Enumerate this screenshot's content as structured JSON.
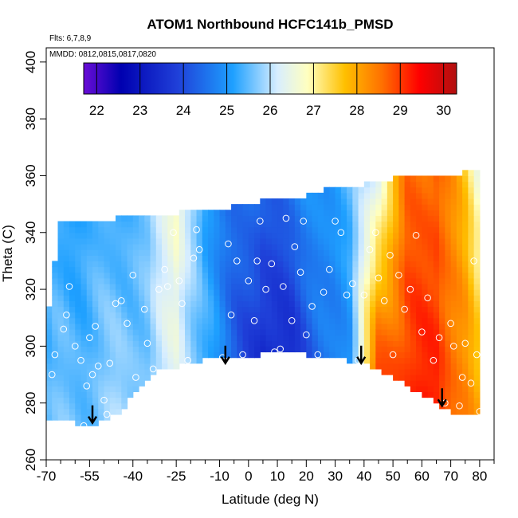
{
  "chart_data": {
    "type": "heatmap",
    "title": "ATOM1 Northbound HCFC141b_PMSD",
    "annotations": [
      "Flts: 6,7,8,9",
      "MMDD: 0812,0815,0817,0820"
    ],
    "xlabel": "Latitude (deg N)",
    "ylabel": "Theta (C)",
    "xlim": [
      -70,
      85
    ],
    "ylim": [
      260,
      405
    ],
    "x_ticks_major": [
      -70,
      -55,
      -40,
      -25,
      -10,
      0,
      10,
      20,
      30,
      40,
      50,
      60,
      70,
      80
    ],
    "x_ticks_minor": [
      -65,
      -60,
      -50,
      -45,
      -35,
      -30,
      -20,
      -15,
      -5,
      5,
      15,
      25,
      35,
      45,
      55,
      65,
      75,
      85
    ],
    "y_ticks": [
      260,
      280,
      300,
      320,
      340,
      360,
      380,
      400
    ],
    "colorbar": {
      "min": 21.7,
      "max": 30.3,
      "ticks": [
        22,
        23,
        24,
        25,
        26,
        27,
        28,
        29,
        30
      ]
    },
    "colors": {
      "scale": [
        "#6a0dd6",
        "#0000b0",
        "#1f3fd8",
        "#1ea0ff",
        "#c8e8ff",
        "#ffffc0",
        "#ffc000",
        "#ff7000",
        "#ff0000",
        "#b01010"
      ]
    },
    "field_description": {
      "anchors_lat": [
        -58,
        -45,
        -35,
        -25,
        -15,
        -5,
        5,
        15,
        25,
        35,
        45,
        55,
        65,
        75,
        80
      ],
      "anchor_values_low": [
        25.5,
        25.8,
        25.6,
        26.3,
        25.3,
        24.3,
        23.4,
        23.6,
        24.4,
        25.0,
        28.9,
        29.0,
        29.2,
        28.4,
        27.8
      ],
      "anchor_values_high": [
        25.2,
        25.3,
        25.5,
        26.8,
        25.0,
        24.5,
        24.2,
        24.5,
        25.0,
        25.3,
        26.5,
        28.5,
        28.8,
        27.5,
        26.5
      ]
    },
    "sample_points": [
      [
        -68,
        290
      ],
      [
        -67,
        297
      ],
      [
        -64,
        306
      ],
      [
        -63,
        311
      ],
      [
        -62,
        321
      ],
      [
        -60,
        300
      ],
      [
        -58,
        295
      ],
      [
        -57,
        272
      ],
      [
        -56,
        286
      ],
      [
        -55,
        303
      ],
      [
        -54,
        290
      ],
      [
        -53,
        307
      ],
      [
        -52,
        293
      ],
      [
        -50,
        281
      ],
      [
        -49,
        276
      ],
      [
        -48,
        294
      ],
      [
        -46,
        315
      ],
      [
        -44,
        316
      ],
      [
        -42,
        308
      ],
      [
        -40,
        325
      ],
      [
        -39,
        289
      ],
      [
        -36,
        313
      ],
      [
        -35,
        301
      ],
      [
        -33,
        292
      ],
      [
        -31,
        320
      ],
      [
        -29,
        327
      ],
      [
        -28,
        321
      ],
      [
        -26,
        340
      ],
      [
        -24,
        323
      ],
      [
        -23,
        315
      ],
      [
        -21,
        295
      ],
      [
        -19,
        331
      ],
      [
        -18,
        341
      ],
      [
        -17,
        334
      ],
      [
        -9,
        296
      ],
      [
        -7,
        336
      ],
      [
        -6,
        311
      ],
      [
        -4,
        330
      ],
      [
        -2,
        297
      ],
      [
        0,
        323
      ],
      [
        2,
        309
      ],
      [
        3,
        330
      ],
      [
        4,
        344
      ],
      [
        6,
        320
      ],
      [
        8,
        329
      ],
      [
        9,
        298
      ],
      [
        11,
        299
      ],
      [
        12,
        321
      ],
      [
        13,
        345
      ],
      [
        15,
        309
      ],
      [
        16,
        335
      ],
      [
        18,
        326
      ],
      [
        19,
        344
      ],
      [
        20,
        304
      ],
      [
        22,
        314
      ],
      [
        24,
        297
      ],
      [
        26,
        319
      ],
      [
        28,
        327
      ],
      [
        30,
        344
      ],
      [
        32,
        340
      ],
      [
        34,
        318
      ],
      [
        36,
        322
      ],
      [
        38,
        295
      ],
      [
        40,
        318
      ],
      [
        42,
        334
      ],
      [
        44,
        340
      ],
      [
        45,
        324
      ],
      [
        47,
        316
      ],
      [
        49,
        332
      ],
      [
        50,
        297
      ],
      [
        52,
        325
      ],
      [
        54,
        313
      ],
      [
        56,
        320
      ],
      [
        58,
        339
      ],
      [
        60,
        305
      ],
      [
        62,
        317
      ],
      [
        64,
        295
      ],
      [
        66,
        303
      ],
      [
        68,
        280
      ],
      [
        70,
        308
      ],
      [
        71,
        300
      ],
      [
        73,
        279
      ],
      [
        74,
        289
      ],
      [
        75,
        301
      ],
      [
        77,
        287
      ],
      [
        78,
        330
      ],
      [
        79,
        297
      ],
      [
        80,
        277
      ]
    ],
    "arrows": [
      {
        "lat": -54,
        "theta": 273
      },
      {
        "lat": -8,
        "theta": 294
      },
      {
        "lat": 39,
        "theta": 294
      },
      {
        "lat": 67,
        "theta": 279
      }
    ],
    "region_outline_top": [
      [
        -70,
        311
      ],
      [
        -68,
        318
      ],
      [
        -66,
        343
      ],
      [
        -50,
        344
      ],
      [
        -40,
        346
      ],
      [
        -26,
        346
      ],
      [
        -20,
        348
      ],
      [
        -10,
        348
      ],
      [
        0,
        350
      ],
      [
        10,
        352
      ],
      [
        20,
        353
      ],
      [
        30,
        356
      ],
      [
        40,
        357
      ],
      [
        50,
        359
      ],
      [
        62,
        360
      ],
      [
        70,
        360
      ],
      [
        75,
        361
      ],
      [
        80,
        362
      ]
    ],
    "region_outline_bottom": [
      [
        -70,
        275
      ],
      [
        -55,
        272
      ],
      [
        -45,
        276
      ],
      [
        -38,
        286
      ],
      [
        -30,
        292
      ],
      [
        -20,
        294
      ],
      [
        -10,
        297
      ],
      [
        0,
        296
      ],
      [
        10,
        299
      ],
      [
        20,
        297
      ],
      [
        30,
        296
      ],
      [
        40,
        294
      ],
      [
        50,
        289
      ],
      [
        60,
        283
      ],
      [
        70,
        277
      ],
      [
        75,
        276
      ],
      [
        80,
        276
      ]
    ]
  }
}
